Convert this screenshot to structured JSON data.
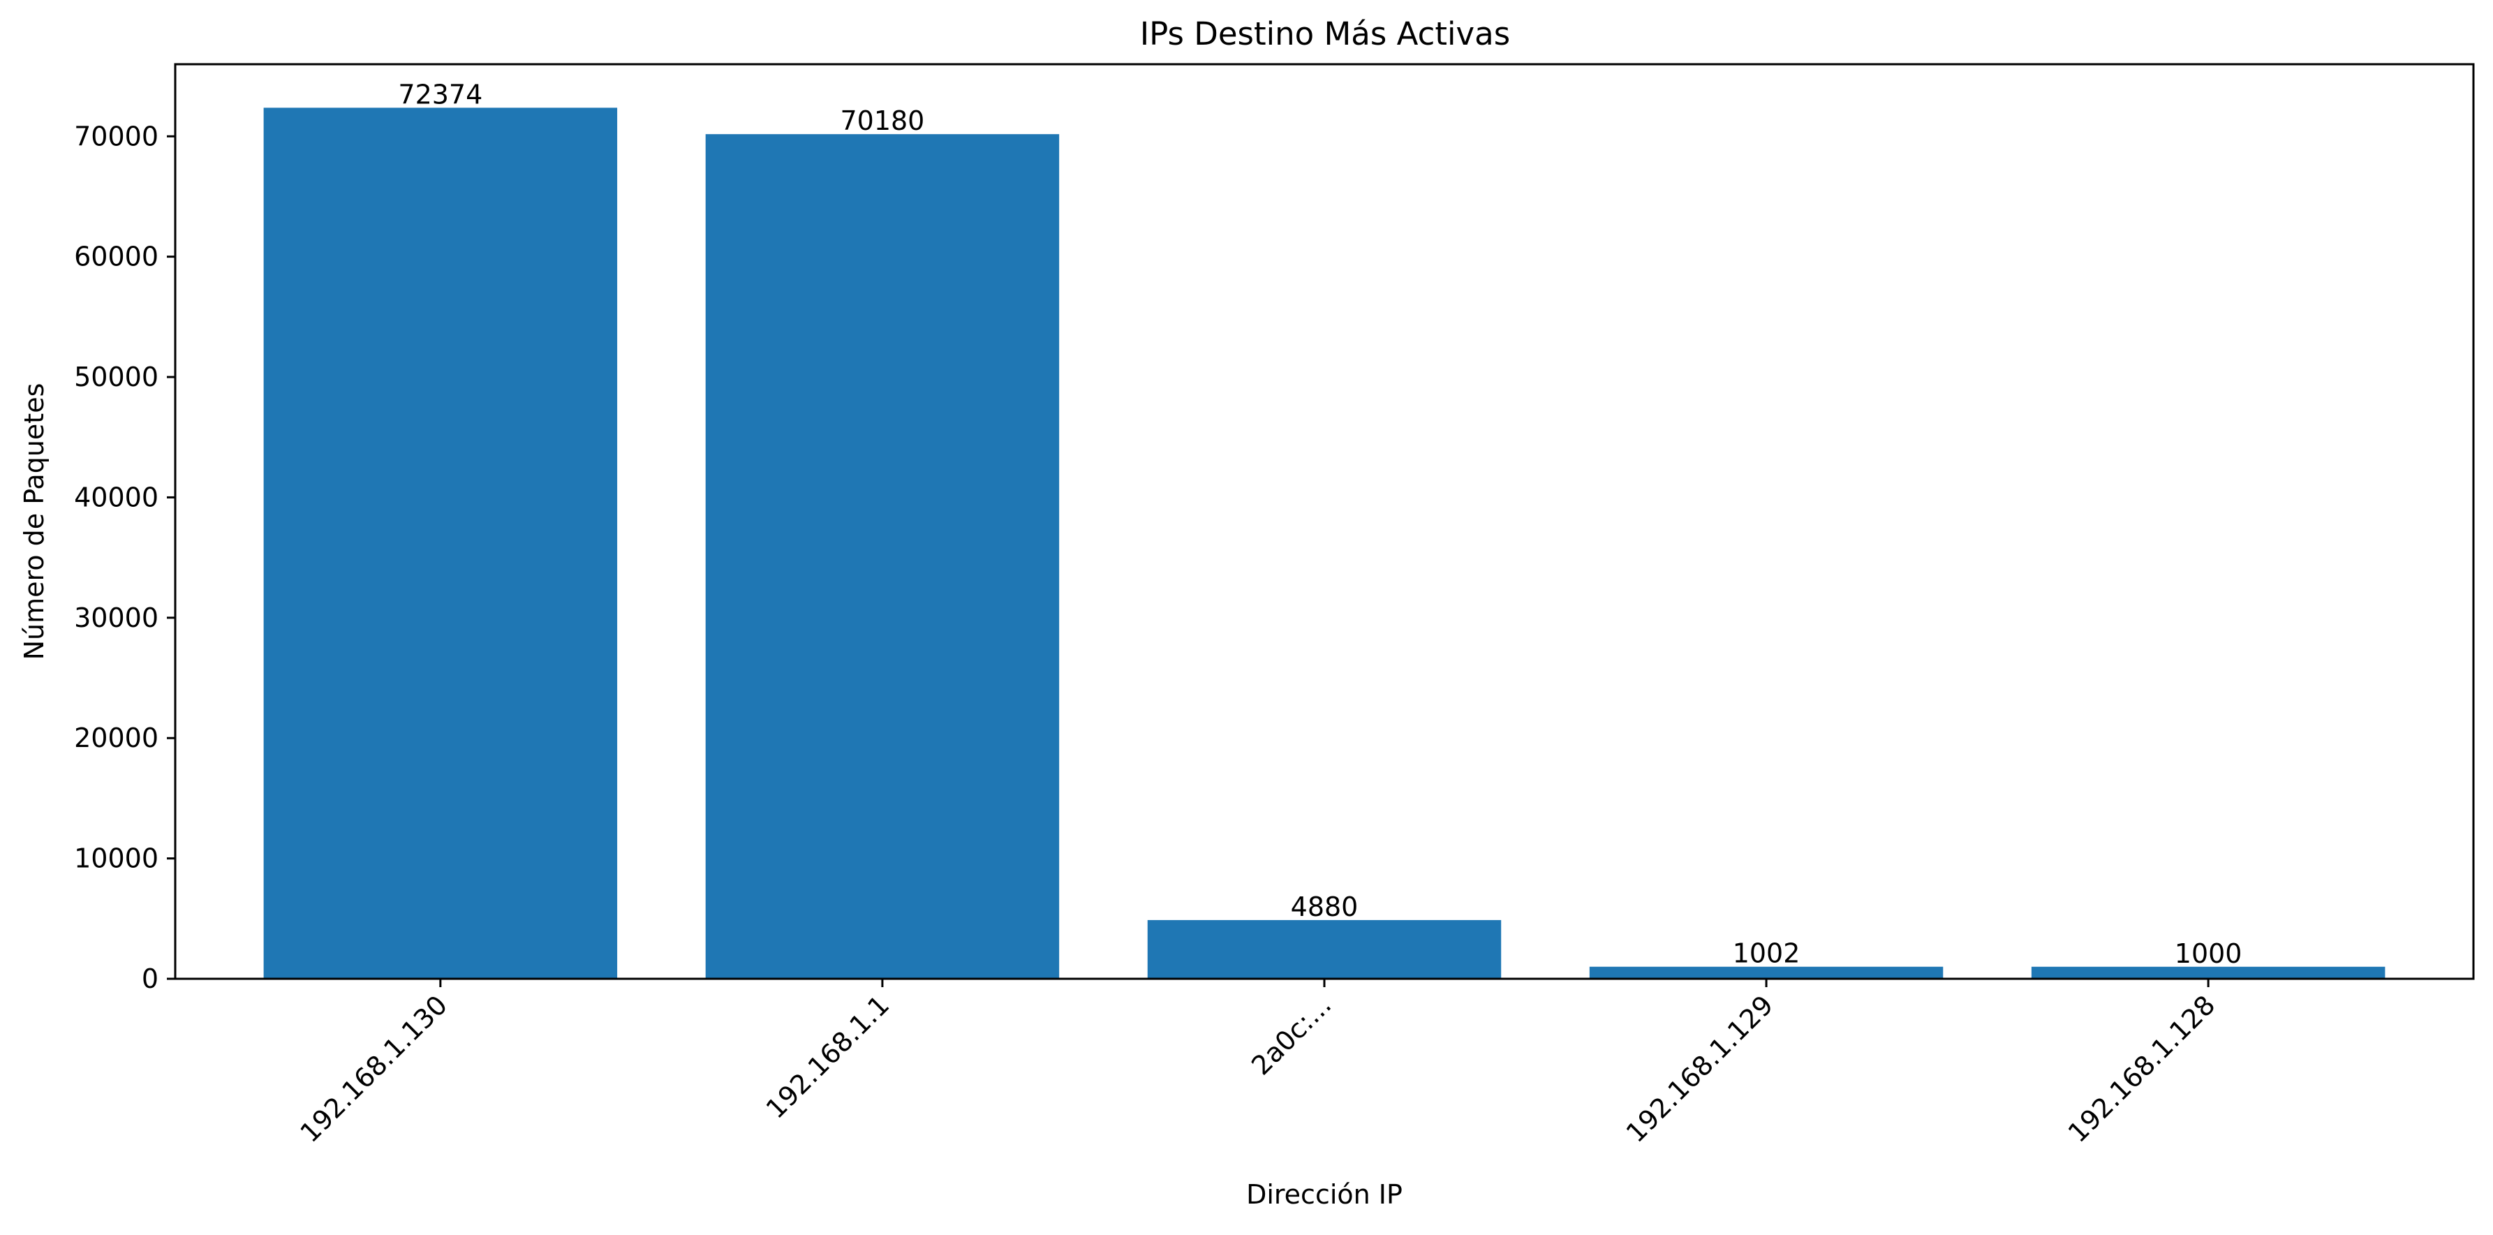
{
  "chart_data": {
    "type": "bar",
    "title": "IPs Destino Más Activas",
    "xlabel": "Dirección IP",
    "ylabel": "Número de Paquetes",
    "categories": [
      "192.168.1.130",
      "192.168.1.1",
      "2a0c:...",
      "192.168.1.129",
      "192.168.1.128"
    ],
    "values": [
      72374,
      70180,
      4880,
      1002,
      1000
    ],
    "value_labels": [
      "72374",
      "70180",
      "4880",
      "1002",
      "1000"
    ],
    "ylim": [
      0,
      75990
    ],
    "yticks": [
      0,
      10000,
      20000,
      30000,
      40000,
      50000,
      60000,
      70000
    ],
    "ytick_labels": [
      "0",
      "10000",
      "20000",
      "30000",
      "40000",
      "50000",
      "60000",
      "70000"
    ],
    "xtick_rotation_deg": 45,
    "bar_color": "#1f77b4",
    "grid": false,
    "legend": "none"
  }
}
